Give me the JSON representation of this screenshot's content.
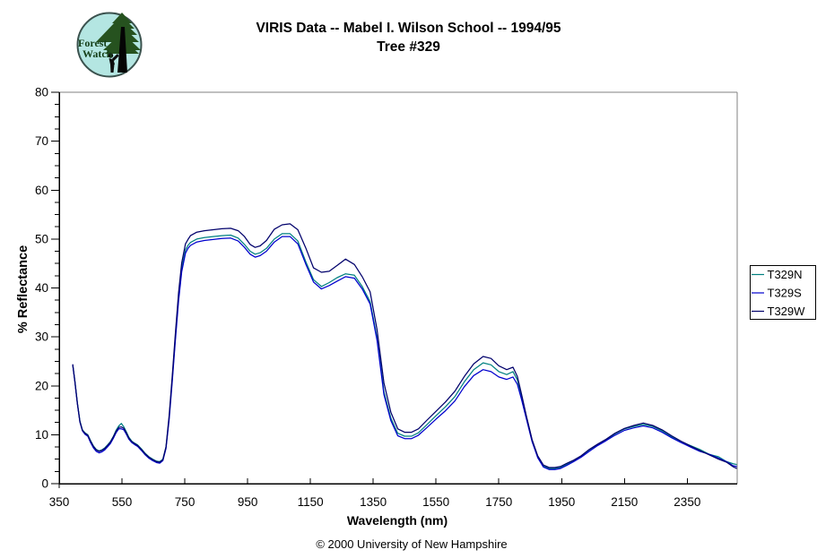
{
  "logo": {
    "line1": "Forest",
    "line2": "Watch"
  },
  "title": {
    "line1": "VIRIS Data -- Mabel I. Wilson School -- 1994/95",
    "line2": "Tree #329"
  },
  "footer": {
    "text": "© 2000 University of New Hampshire"
  },
  "chart_data": {
    "type": "line",
    "title": "VIRIS Data -- Mabel I. Wilson School -- 1994/95 Tree #329",
    "xlabel": "Wavelength (nm)",
    "ylabel": "% Reflectance",
    "xlim": [
      350,
      2509
    ],
    "ylim": [
      0,
      80
    ],
    "x_ticks": [
      350,
      550,
      750,
      950,
      1150,
      1350,
      1550,
      1750,
      1950,
      2150,
      2350
    ],
    "y_ticks": [
      0,
      10,
      20,
      30,
      40,
      50,
      60,
      70,
      80
    ],
    "y_minor_step": 2.5,
    "grid": false,
    "legend_position": "right",
    "x_nm": [
      393,
      400,
      408,
      416,
      424,
      432,
      441,
      450,
      459,
      468,
      477,
      486,
      495,
      504,
      513,
      522,
      531,
      540,
      548,
      556,
      564,
      572,
      581,
      590,
      600,
      612,
      624,
      636,
      648,
      660,
      670,
      680,
      690,
      700,
      710,
      720,
      730,
      740,
      752,
      760,
      768,
      788,
      812,
      840,
      868,
      896,
      920,
      940,
      958,
      974,
      990,
      1010,
      1035,
      1060,
      1085,
      1110,
      1135,
      1160,
      1185,
      1210,
      1235,
      1262,
      1290,
      1315,
      1340,
      1362,
      1384,
      1406,
      1428,
      1450,
      1472,
      1494,
      1520,
      1550,
      1580,
      1610,
      1640,
      1670,
      1700,
      1725,
      1750,
      1775,
      1795,
      1809,
      1822,
      1838,
      1856,
      1874,
      1892,
      1910,
      1928,
      1946,
      1965,
      1988,
      2012,
      2038,
      2065,
      2092,
      2120,
      2150,
      2180,
      2210,
      2240,
      2270,
      2300,
      2330,
      2360,
      2390,
      2420,
      2450,
      2475,
      2495,
      2508
    ],
    "series": [
      {
        "name": "T329N",
        "color": "#008080",
        "values": [
          24.3,
          21.0,
          16.5,
          12.8,
          11.0,
          10.4,
          10.0,
          8.8,
          7.7,
          7.0,
          6.7,
          6.9,
          7.3,
          7.9,
          8.6,
          9.6,
          10.9,
          11.8,
          12.3,
          11.6,
          10.6,
          9.5,
          8.7,
          8.3,
          7.9,
          7.1,
          6.2,
          5.5,
          5.0,
          4.6,
          4.5,
          5.0,
          7.5,
          13.5,
          21.5,
          30.0,
          38.0,
          44.0,
          47.8,
          48.7,
          49.3,
          50.0,
          50.3,
          50.5,
          50.7,
          50.8,
          50.2,
          48.9,
          47.5,
          46.9,
          47.2,
          48.1,
          50.0,
          51.1,
          51.1,
          49.6,
          45.4,
          41.7,
          40.3,
          41.1,
          42.1,
          42.9,
          42.6,
          40.3,
          37.2,
          29.8,
          18.8,
          13.4,
          10.3,
          9.7,
          9.7,
          10.4,
          12.0,
          13.9,
          15.7,
          17.8,
          20.8,
          23.3,
          24.7,
          24.3,
          22.9,
          22.3,
          22.9,
          21.2,
          17.9,
          13.5,
          8.8,
          5.5,
          3.6,
          3.1,
          3.1,
          3.3,
          3.9,
          4.7,
          5.6,
          6.9,
          8.0,
          9.0,
          10.2,
          11.2,
          11.7,
          12.1,
          11.7,
          10.8,
          9.6,
          8.6,
          7.8,
          7.0,
          6.0,
          5.5,
          4.5,
          4.1,
          3.9
        ]
      },
      {
        "name": "T329S",
        "color": "#0000cd",
        "values": [
          24.3,
          20.8,
          16.3,
          12.6,
          10.8,
          10.1,
          9.7,
          8.4,
          7.3,
          6.6,
          6.3,
          6.5,
          6.9,
          7.5,
          8.2,
          9.2,
          10.4,
          11.2,
          11.2,
          11.0,
          10.1,
          9.1,
          8.4,
          8.0,
          7.6,
          6.8,
          5.9,
          5.2,
          4.7,
          4.3,
          4.2,
          4.7,
          7.2,
          13.1,
          21.0,
          29.4,
          37.3,
          43.3,
          47.1,
          48.1,
          48.7,
          49.4,
          49.7,
          49.9,
          50.1,
          50.2,
          49.6,
          48.3,
          46.9,
          46.3,
          46.6,
          47.5,
          49.4,
          50.5,
          50.5,
          49.0,
          44.9,
          41.2,
          39.8,
          40.5,
          41.4,
          42.3,
          42.0,
          39.8,
          36.7,
          29.3,
          18.2,
          12.9,
          9.8,
          9.2,
          9.2,
          9.9,
          11.4,
          13.2,
          14.9,
          16.9,
          19.8,
          22.1,
          23.3,
          22.9,
          21.8,
          21.3,
          21.8,
          20.3,
          17.3,
          13.2,
          8.6,
          5.3,
          3.4,
          2.9,
          2.9,
          3.1,
          3.7,
          4.5,
          5.4,
          6.6,
          7.8,
          8.8,
          9.9,
          10.9,
          11.4,
          11.8,
          11.4,
          10.5,
          9.4,
          8.4,
          7.5,
          6.6,
          6.0,
          5.2,
          4.5,
          3.7,
          3.5
        ]
      },
      {
        "name": "T329W",
        "color": "#00006b",
        "values": [
          24.4,
          20.9,
          16.4,
          12.7,
          10.9,
          10.3,
          9.9,
          8.7,
          7.6,
          6.9,
          6.6,
          6.8,
          7.2,
          7.8,
          8.5,
          9.5,
          10.7,
          11.5,
          11.6,
          11.3,
          10.4,
          9.3,
          8.6,
          8.2,
          7.8,
          7.0,
          6.1,
          5.4,
          4.9,
          4.5,
          4.4,
          4.9,
          7.5,
          13.9,
          22.1,
          30.8,
          39.0,
          45.1,
          49.0,
          49.9,
          50.7,
          51.4,
          51.7,
          51.9,
          52.1,
          52.2,
          51.7,
          50.5,
          48.9,
          48.3,
          48.6,
          49.7,
          52.0,
          52.9,
          53.1,
          51.9,
          48.2,
          44.1,
          43.2,
          43.4,
          44.6,
          45.9,
          44.8,
          42.3,
          39.2,
          31.5,
          20.6,
          14.6,
          11.2,
          10.5,
          10.5,
          11.2,
          12.9,
          14.8,
          16.7,
          18.9,
          21.9,
          24.5,
          26.0,
          25.6,
          24.1,
          23.3,
          23.8,
          21.9,
          18.4,
          13.8,
          9.0,
          5.7,
          3.8,
          3.3,
          3.3,
          3.5,
          4.1,
          4.8,
          5.7,
          7.0,
          8.1,
          9.1,
          10.3,
          11.3,
          11.9,
          12.4,
          11.9,
          11.0,
          9.8,
          8.7,
          7.7,
          6.8,
          5.9,
          5.0,
          4.4,
          3.5,
          3.1
        ]
      }
    ]
  }
}
